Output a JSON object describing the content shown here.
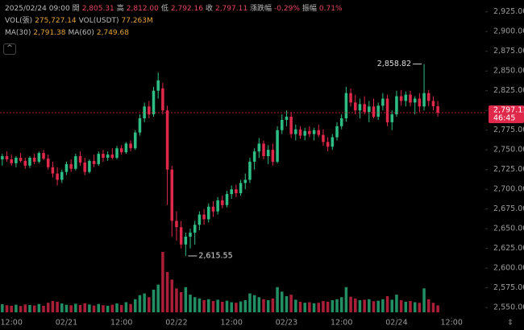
{
  "chart_data": {
    "type": "candlestick",
    "readout": {
      "ohlc": [
        {
          "text": "2025/02/24 09:00"
        },
        {
          "name": "開",
          "value": {
            "value": 2805.31,
            "label": "2,805.31"
          }
        },
        {
          "name": "高",
          "value": {
            "value": 2812.0,
            "label": "2,812.00"
          }
        },
        {
          "name": "低",
          "value": {
            "value": 2792.16,
            "label": "2,792.16"
          }
        },
        {
          "name": "收",
          "value": {
            "value": 2797.11,
            "label": "2,797.11"
          }
        },
        {
          "name": "漲跌幅",
          "value": {
            "value": -0.29,
            "label": "-0.29%"
          }
        },
        {
          "name": "振幅",
          "value": {
            "value": 0.71,
            "label": "0.71%"
          }
        }
      ],
      "volume": [
        {
          "name": "VOL(張)",
          "value": {
            "value": 275727.14,
            "label": "275,727.14"
          }
        },
        {
          "name": "VOL(USDT)",
          "value": {
            "value": 77263000,
            "label": "77.263M"
          }
        }
      ],
      "ma": [
        {
          "name": "MA(30)",
          "value": {
            "value": 2791.38,
            "label": "2,791.38"
          }
        },
        {
          "name": "MA(60)",
          "value": {
            "value": 2749.68,
            "label": "2,749.68"
          }
        }
      ]
    },
    "up_color": "#2ebd85",
    "down_color": "#e0294a",
    "open": [
      2738,
      2742,
      2738,
      2733,
      2740,
      2736,
      2730,
      2740,
      2735,
      2746,
      2739,
      2728,
      2720,
      2712,
      2722,
      2732,
      2726,
      2742,
      2734,
      2722,
      2736,
      2732,
      2745,
      2740,
      2744,
      2740,
      2752,
      2747,
      2758,
      2752,
      2772,
      2790,
      2805,
      2795,
      2825,
      2828,
      2800,
      2725,
      2660,
      2652,
      2630,
      2640,
      2645,
      2655,
      2668,
      2662,
      2678,
      2672,
      2686,
      2680,
      2694,
      2700,
      2695,
      2708,
      2712,
      2735,
      2748,
      2758,
      2742,
      2750,
      2735,
      2775,
      2788,
      2792,
      2770,
      2776,
      2768,
      2774,
      2770,
      2775,
      2769,
      2760,
      2754,
      2766,
      2780,
      2790,
      2822,
      2810,
      2800,
      2808,
      2798,
      2805,
      2792,
      2806,
      2815,
      2785,
      2795,
      2818,
      2812,
      2820,
      2810,
      2815,
      2805,
      2822,
      2812,
      2805.31
    ],
    "high": [
      2745,
      2748,
      2744,
      2742,
      2746,
      2740,
      2742,
      2745,
      2748,
      2750,
      2744,
      2735,
      2728,
      2725,
      2735,
      2738,
      2745,
      2748,
      2740,
      2738,
      2744,
      2748,
      2750,
      2748,
      2752,
      2755,
      2756,
      2760,
      2762,
      2775,
      2795,
      2810,
      2812,
      2830,
      2848,
      2835,
      2806,
      2730,
      2672,
      2660,
      2645,
      2650,
      2660,
      2672,
      2675,
      2682,
      2685,
      2690,
      2692,
      2698,
      2705,
      2706,
      2712,
      2720,
      2740,
      2752,
      2765,
      2762,
      2756,
      2758,
      2780,
      2795,
      2800,
      2798,
      2782,
      2780,
      2778,
      2780,
      2778,
      2782,
      2776,
      2766,
      2770,
      2785,
      2795,
      2830,
      2828,
      2820,
      2815,
      2818,
      2812,
      2815,
      2810,
      2822,
      2820,
      2800,
      2825,
      2826,
      2824,
      2825,
      2818,
      2822,
      2858.82,
      2826,
      2818,
      2812
    ],
    "low": [
      2730,
      2735,
      2730,
      2728,
      2734,
      2726,
      2727,
      2732,
      2733,
      2737,
      2725,
      2715,
      2705,
      2708,
      2718,
      2722,
      2724,
      2730,
      2718,
      2720,
      2728,
      2730,
      2735,
      2736,
      2738,
      2738,
      2744,
      2745,
      2748,
      2750,
      2768,
      2785,
      2790,
      2792,
      2815,
      2795,
      2680,
      2640,
      2635,
      2625,
      2615.55,
      2625,
      2630,
      2648,
      2655,
      2658,
      2665,
      2668,
      2676,
      2677,
      2688,
      2690,
      2692,
      2700,
      2708,
      2725,
      2740,
      2738,
      2732,
      2730,
      2733,
      2770,
      2780,
      2765,
      2762,
      2764,
      2762,
      2766,
      2762,
      2766,
      2755,
      2748,
      2750,
      2762,
      2776,
      2786,
      2805,
      2795,
      2790,
      2795,
      2785,
      2790,
      2788,
      2800,
      2780,
      2775,
      2792,
      2806,
      2805,
      2805,
      2795,
      2798,
      2800,
      2805,
      2800,
      2792.16
    ],
    "close": [
      2742,
      2738,
      2733,
      2740,
      2736,
      2730,
      2740,
      2735,
      2746,
      2739,
      2728,
      2720,
      2712,
      2722,
      2732,
      2726,
      2742,
      2734,
      2722,
      2736,
      2732,
      2745,
      2740,
      2744,
      2740,
      2752,
      2747,
      2758,
      2752,
      2772,
      2790,
      2805,
      2795,
      2825,
      2838,
      2800,
      2725,
      2660,
      2652,
      2630,
      2640,
      2645,
      2655,
      2668,
      2662,
      2678,
      2672,
      2686,
      2680,
      2694,
      2700,
      2695,
      2708,
      2712,
      2735,
      2748,
      2758,
      2742,
      2750,
      2735,
      2775,
      2788,
      2792,
      2770,
      2776,
      2768,
      2774,
      2770,
      2775,
      2769,
      2760,
      2754,
      2766,
      2780,
      2790,
      2822,
      2810,
      2800,
      2808,
      2798,
      2805,
      2792,
      2806,
      2815,
      2785,
      2795,
      2818,
      2812,
      2820,
      2810,
      2815,
      2805,
      2822,
      2812,
      2805.31,
      2797.11
    ],
    "volume": [
      320000,
      280000,
      260000,
      300000,
      250000,
      310000,
      290000,
      270000,
      330000,
      260000,
      380000,
      450000,
      420000,
      350000,
      300000,
      280000,
      340000,
      290000,
      360000,
      310000,
      270000,
      330000,
      280000,
      260000,
      300000,
      350000,
      290000,
      400000,
      330000,
      520000,
      680000,
      750000,
      600000,
      900000,
      1100000,
      2400000,
      1600000,
      1300000,
      950000,
      800000,
      1000000,
      700000,
      600000,
      550000,
      480000,
      520000,
      450000,
      500000,
      420000,
      460000,
      400000,
      380000,
      430000,
      480000,
      750000,
      680000,
      600000,
      520000,
      480000,
      550000,
      1000000,
      820000,
      640000,
      700000,
      500000,
      420000,
      380000,
      400000,
      360000,
      380000,
      450000,
      420000,
      480000,
      520000,
      600000,
      1000000,
      620000,
      550000,
      480000,
      500000,
      520000,
      440000,
      460000,
      520000,
      640000,
      500000,
      700000,
      480000,
      420000,
      450000,
      400000,
      380000,
      950000,
      520000,
      380000,
      275727.14
    ],
    "xlim": [
      -0.5,
      105
    ],
    "ylim": [
      2540,
      2940
    ],
    "yticks": [
      {
        "value": 2550,
        "label": "2,550.00"
      },
      {
        "value": 2575,
        "label": "2,575.00"
      },
      {
        "value": 2600,
        "label": "2,600.00"
      },
      {
        "value": 2625,
        "label": "2,625.00"
      },
      {
        "value": 2650,
        "label": "2,650.00"
      },
      {
        "value": 2675,
        "label": "2,675.00"
      },
      {
        "value": 2700,
        "label": "2,700.00"
      },
      {
        "value": 2725,
        "label": "2,725.00"
      },
      {
        "value": 2750,
        "label": "2,750.00"
      },
      {
        "value": 2775,
        "label": "2,775.00"
      },
      {
        "value": 2800,
        "label": "2,800.00"
      },
      {
        "value": 2825,
        "label": "2,825.00"
      },
      {
        "value": 2850,
        "label": "2,850.00"
      },
      {
        "value": 2875,
        "label": "2,875.00"
      },
      {
        "value": 2900,
        "label": "2,900.00"
      },
      {
        "value": 2925,
        "label": "2,925.00"
      }
    ],
    "xticks": [
      {
        "value": 2,
        "label": "12:00"
      },
      {
        "value": 14,
        "label": "02/21"
      },
      {
        "value": 26,
        "label": "12:00"
      },
      {
        "value": 38,
        "label": "02/22"
      },
      {
        "value": 50,
        "label": "12:00"
      },
      {
        "value": 62,
        "label": "02/23"
      },
      {
        "value": 74,
        "label": "12:00"
      },
      {
        "value": 86,
        "label": "02/24"
      },
      {
        "value": 98,
        "label": "12:00"
      }
    ],
    "annotations": [
      {
        "kind": "high",
        "value": 2858.82,
        "label": "2,858.82"
      },
      {
        "kind": "low",
        "value": 2615.55,
        "label": "2,615.55"
      }
    ],
    "last_price": {
      "value": 2797.11,
      "label": "2,797.11"
    },
    "countdown": "46:45",
    "grid": false
  }
}
